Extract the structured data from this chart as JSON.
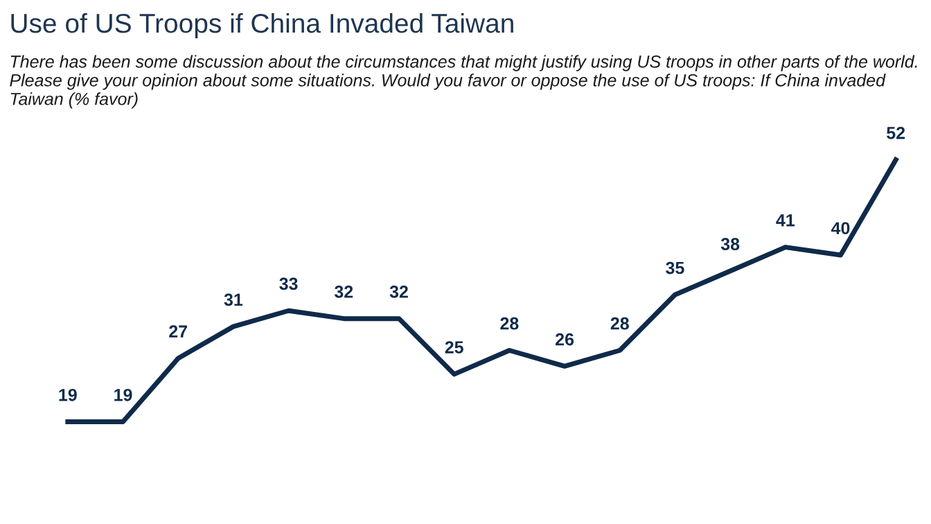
{
  "chart_data": {
    "type": "line",
    "title": "Use of US Troops if China Invaded Taiwan",
    "subtitle": "There has been some discussion about the circumstances that might justify using US troops in other parts of the world. Please give your opinion about some situations. Would you favor or oppose the use of US troops: If China invaded Taiwan (% favor)",
    "categories": [
      null,
      null,
      null,
      null,
      null,
      null,
      null,
      null,
      null,
      null,
      null,
      null,
      null,
      null,
      null,
      null
    ],
    "series": [
      {
        "color": "#0f2a4a",
        "values": [
          19,
          19,
          27,
          31,
          33,
          32,
          32,
          25,
          28,
          26,
          28,
          35,
          38,
          41,
          40,
          52
        ]
      }
    ],
    "data_labels": true,
    "grid": false,
    "marker": "none",
    "line_style": "solid",
    "tick_labels": false
  }
}
